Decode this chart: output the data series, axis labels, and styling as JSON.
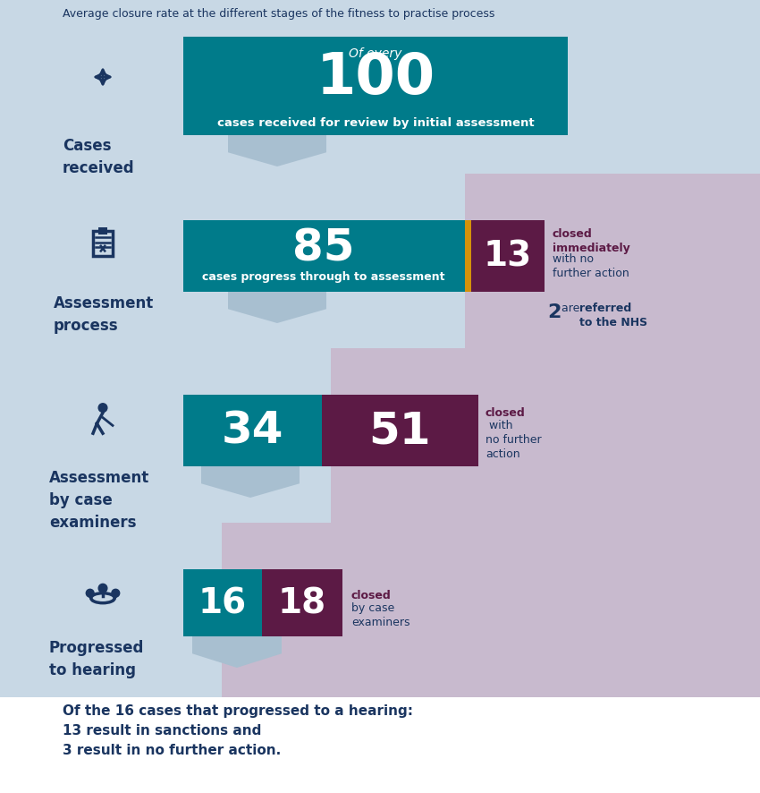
{
  "title": "Average closure rate at the different stages of the fitness to practise process",
  "bg_main": "#c8d8e5",
  "bg_pink": "#c8bace",
  "bg_white": "#ffffff",
  "color_teal": "#007b8a",
  "color_purple": "#5c1a45",
  "color_gold": "#d4920a",
  "color_navy": "#1a3560",
  "color_arrow": "#a8bfd0",
  "footer_text_line1": "Of the 16 cases that progressed to a hearing:",
  "footer_text_line2": "13 result in sanctions and",
  "footer_text_line3": "3 result in no further action.",
  "s1_line1": "Of every",
  "s1_number": "100",
  "s1_line2": "cases received for review by initial assessment",
  "s1_label": "Cases\nreceived",
  "s2_main_number": "85",
  "s2_main_text": "cases progress through to assessment",
  "s2_side_number": "13",
  "s2_side_bold": "closed\nimmediately",
  "s2_side_normal": "with no\nfurther action",
  "s2_note_num": "2",
  "s2_note_normal": "are ",
  "s2_note_bold": "referred\nto the NHS",
  "s2_label": "Assessment\nprocess",
  "s3_main_number": "34",
  "s3_side_number": "51",
  "s3_side_bold": "closed",
  "s3_side_normal": " with\nno further\naction",
  "s3_label": "Assessment\nby case\nexaminers",
  "s4_main_number": "16",
  "s4_side_number": "18",
  "s4_side_bold": "closed",
  "s4_side_normal": "by case\nexaminers",
  "s4_label": "Progressed\nto hearing"
}
